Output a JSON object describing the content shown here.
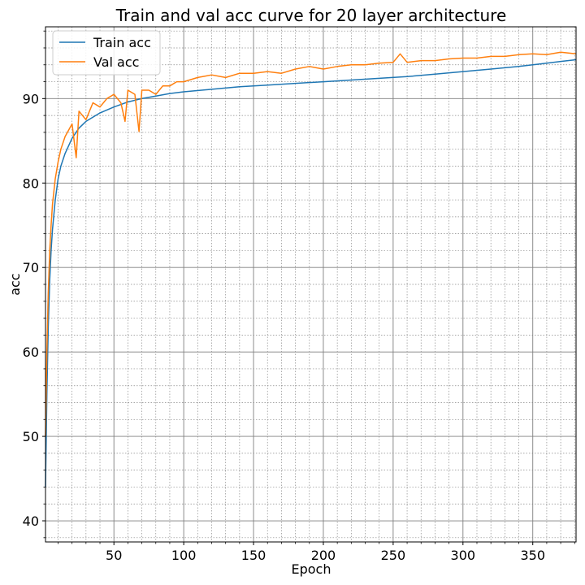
{
  "chart_data": {
    "type": "line",
    "title": "Train and val acc curve for 20 layer architecture",
    "xlabel": "Epoch",
    "ylabel": "acc",
    "xlim": [
      1,
      381
    ],
    "ylim": [
      37.5,
      98.5
    ],
    "xticks": [
      50,
      100,
      150,
      200,
      250,
      300,
      350
    ],
    "yticks": [
      40,
      50,
      60,
      70,
      80,
      90
    ],
    "grid": "major solid + minor dotted",
    "legend_position": "top-left",
    "series": [
      {
        "name": "Train acc",
        "color": "#1f77b4",
        "x": [
          1,
          2,
          3,
          4,
          5,
          6,
          8,
          10,
          12,
          15,
          20,
          25,
          30,
          40,
          50,
          60,
          70,
          80,
          90,
          100,
          120,
          140,
          160,
          180,
          200,
          220,
          240,
          260,
          280,
          300,
          320,
          340,
          360,
          370,
          381
        ],
        "y": [
          44,
          55,
          63,
          68.5,
          72,
          74.5,
          78,
          80.5,
          82,
          83.5,
          85.3,
          86.5,
          87.3,
          88.3,
          89.0,
          89.6,
          90.0,
          90.3,
          90.6,
          90.8,
          91.1,
          91.4,
          91.6,
          91.8,
          92.0,
          92.2,
          92.4,
          92.6,
          92.9,
          93.2,
          93.5,
          93.8,
          94.2,
          94.4,
          94.6
        ]
      },
      {
        "name": "Val acc",
        "color": "#ff7f0e",
        "x": [
          1,
          2,
          3,
          4,
          5,
          6,
          8,
          10,
          12,
          15,
          20,
          23,
          25,
          30,
          35,
          40,
          45,
          50,
          55,
          58,
          60,
          65,
          68,
          70,
          75,
          80,
          85,
          90,
          95,
          100,
          110,
          120,
          130,
          140,
          150,
          160,
          170,
          180,
          190,
          200,
          210,
          220,
          230,
          240,
          250,
          255,
          260,
          270,
          280,
          290,
          300,
          310,
          320,
          330,
          340,
          350,
          360,
          370,
          381
        ],
        "y": [
          50,
          60,
          67,
          72,
          75,
          77.5,
          80.5,
          82.5,
          84,
          85.5,
          87,
          83,
          88.5,
          87.5,
          89.5,
          89,
          90,
          90.5,
          89.5,
          87.3,
          91,
          90.5,
          86.1,
          91,
          91,
          90.5,
          91.5,
          91.5,
          92,
          92,
          92.5,
          92.8,
          92.5,
          93,
          93,
          93.2,
          93,
          93.5,
          93.8,
          93.5,
          93.8,
          94,
          94,
          94.2,
          94.3,
          95.3,
          94.3,
          94.5,
          94.5,
          94.7,
          94.8,
          94.8,
          95,
          95,
          95.2,
          95.3,
          95.2,
          95.5,
          95.3
        ]
      }
    ]
  }
}
